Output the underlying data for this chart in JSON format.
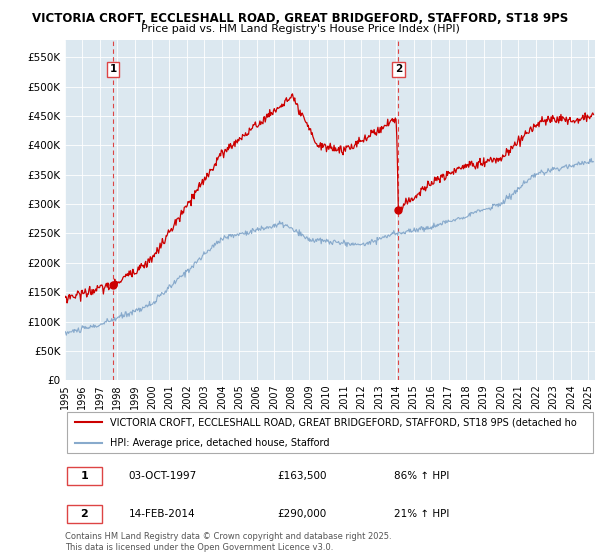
{
  "title1": "VICTORIA CROFT, ECCLESHALL ROAD, GREAT BRIDGEFORD, STAFFORD, ST18 9PS",
  "title2": "Price paid vs. HM Land Registry's House Price Index (HPI)",
  "ylim": [
    0,
    580000
  ],
  "yticks": [
    0,
    50000,
    100000,
    150000,
    200000,
    250000,
    300000,
    350000,
    400000,
    450000,
    500000,
    550000
  ],
  "ytick_labels": [
    "£0",
    "£50K",
    "£100K",
    "£150K",
    "£200K",
    "£250K",
    "£300K",
    "£350K",
    "£400K",
    "£450K",
    "£500K",
    "£550K"
  ],
  "legend_line1": "VICTORIA CROFT, ECCLESHALL ROAD, GREAT BRIDGEFORD, STAFFORD, ST18 9PS (detached ho",
  "legend_line2": "HPI: Average price, detached house, Stafford",
  "transaction1_date": "03-OCT-1997",
  "transaction1_price": "£163,500",
  "transaction1_hpi": "86% ↑ HPI",
  "transaction2_date": "14-FEB-2014",
  "transaction2_price": "£290,000",
  "transaction2_hpi": "21% ↑ HPI",
  "footer": "Contains HM Land Registry data © Crown copyright and database right 2025.\nThis data is licensed under the Open Government Licence v3.0.",
  "red_color": "#cc0000",
  "blue_color": "#88aacc",
  "dashed_red": "#dd4444",
  "marker1_x": 1997.77,
  "marker2_x": 2014.12,
  "chart_bg": "#dce8f0",
  "background_color": "#ffffff",
  "grid_color": "#ffffff"
}
